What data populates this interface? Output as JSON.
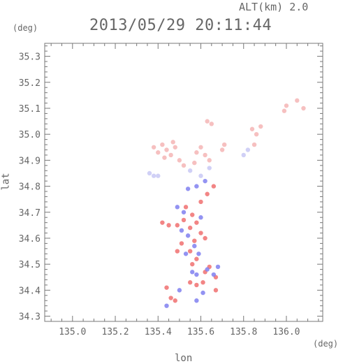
{
  "header": {
    "alt_label": "ALT(km) 2.0",
    "timestamp": "2013/05/29 20:11:44"
  },
  "colors": {
    "axis": "#777777",
    "positive": "#f07070",
    "positive_light": "#f5b5b5",
    "negative": "#8080f0",
    "negative_light": "#c8c8f5"
  },
  "chart_data": {
    "type": "scatter",
    "title": "2013/05/29 20:11:44",
    "subtitle": "ALT(km) 2.0",
    "xlabel": "lon",
    "ylabel": "lat",
    "x_unit": "(deg)",
    "y_unit": "(deg)",
    "xlim": [
      134.87,
      136.17
    ],
    "ylim": [
      34.28,
      35.35
    ],
    "xticks": [
      135.0,
      135.2,
      135.4,
      135.6,
      135.8,
      136.0
    ],
    "xtick_labels": [
      "135.0",
      "135.2",
      "135.4",
      "135.6",
      "135.8",
      "136.0"
    ],
    "yticks": [
      34.3,
      34.4,
      34.5,
      34.6,
      34.7,
      34.8,
      34.9,
      35.0,
      35.1,
      35.2,
      35.3
    ],
    "ytick_labels": [
      "34.3",
      "34.4",
      "34.5",
      "34.6",
      "34.7",
      "34.8",
      "34.9",
      "35.0",
      "35.1",
      "35.2",
      "35.3"
    ],
    "grid": false,
    "series": [
      {
        "color": "positive_light",
        "points": [
          [
            135.38,
            34.95
          ],
          [
            135.4,
            34.93
          ],
          [
            135.42,
            34.96
          ],
          [
            135.44,
            34.94
          ],
          [
            135.46,
            34.92
          ],
          [
            135.48,
            34.95
          ],
          [
            135.5,
            34.9
          ],
          [
            135.52,
            34.88
          ],
          [
            135.47,
            34.97
          ],
          [
            135.43,
            34.91
          ],
          [
            135.58,
            34.93
          ],
          [
            135.6,
            34.95
          ],
          [
            135.62,
            34.92
          ],
          [
            135.64,
            34.9
          ],
          [
            135.57,
            34.89
          ],
          [
            135.7,
            34.94
          ],
          [
            135.71,
            34.96
          ],
          [
            135.63,
            35.05
          ],
          [
            135.65,
            35.04
          ],
          [
            135.84,
            35.02
          ],
          [
            135.86,
            35.0
          ],
          [
            135.88,
            35.03
          ],
          [
            135.85,
            34.96
          ],
          [
            135.99,
            35.09
          ],
          [
            136.0,
            35.11
          ],
          [
            136.05,
            35.13
          ],
          [
            136.08,
            35.1
          ]
        ]
      },
      {
        "color": "positive",
        "points": [
          [
            135.44,
            34.41
          ],
          [
            135.46,
            34.37
          ],
          [
            135.48,
            34.36
          ],
          [
            135.55,
            34.43
          ],
          [
            135.58,
            34.42
          ],
          [
            135.49,
            34.65
          ],
          [
            135.52,
            34.67
          ],
          [
            135.55,
            34.64
          ],
          [
            135.58,
            34.66
          ],
          [
            135.6,
            34.62
          ],
          [
            135.51,
            34.58
          ],
          [
            135.55,
            34.55
          ],
          [
            135.57,
            34.59
          ],
          [
            135.62,
            34.6
          ],
          [
            135.49,
            34.55
          ],
          [
            135.56,
            34.5
          ],
          [
            135.58,
            34.52
          ],
          [
            135.62,
            34.47
          ],
          [
            135.64,
            34.49
          ],
          [
            135.67,
            34.45
          ],
          [
            135.53,
            34.72
          ],
          [
            135.56,
            34.69
          ],
          [
            135.6,
            34.74
          ],
          [
            135.63,
            34.77
          ],
          [
            135.66,
            34.8
          ],
          [
            135.42,
            34.66
          ],
          [
            135.45,
            34.65
          ],
          [
            135.61,
            34.43
          ],
          [
            135.67,
            34.4
          ]
        ]
      },
      {
        "color": "negative",
        "points": [
          [
            135.49,
            34.72
          ],
          [
            135.52,
            34.7
          ],
          [
            135.54,
            34.61
          ],
          [
            135.57,
            34.57
          ],
          [
            135.59,
            34.54
          ],
          [
            135.56,
            34.47
          ],
          [
            135.58,
            34.46
          ],
          [
            135.63,
            34.48
          ],
          [
            135.66,
            34.46
          ],
          [
            135.51,
            34.63
          ],
          [
            135.53,
            34.54
          ],
          [
            135.6,
            34.68
          ],
          [
            135.62,
            34.82
          ],
          [
            135.58,
            34.8
          ],
          [
            135.54,
            34.79
          ],
          [
            135.44,
            34.34
          ],
          [
            135.5,
            34.4
          ],
          [
            135.61,
            34.39
          ],
          [
            135.58,
            34.36
          ],
          [
            135.68,
            34.49
          ]
        ]
      },
      {
        "color": "negative_light",
        "points": [
          [
            135.36,
            34.85
          ],
          [
            135.38,
            34.84
          ],
          [
            135.4,
            34.84
          ],
          [
            135.55,
            34.86
          ],
          [
            135.6,
            34.84
          ],
          [
            135.64,
            34.87
          ],
          [
            135.8,
            34.92
          ],
          [
            135.82,
            34.94
          ]
        ]
      }
    ]
  }
}
